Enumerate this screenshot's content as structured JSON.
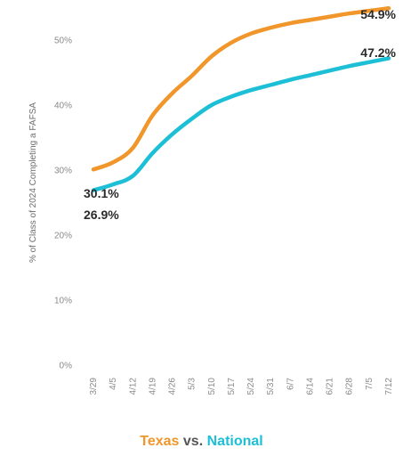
{
  "chart_data": {
    "type": "line",
    "ylabel": "% of Class of 2024 Completing a FAFSA",
    "xlabel": "",
    "categories": [
      "3/29",
      "4/5",
      "4/12",
      "4/19",
      "4/26",
      "5/3",
      "5/10",
      "5/17",
      "5/24",
      "5/31",
      "6/7",
      "6/14",
      "6/21",
      "6/28",
      "7/5",
      "7/12"
    ],
    "ylim": [
      0,
      56
    ],
    "yticks": [
      0,
      10,
      20,
      30,
      40,
      50
    ],
    "ytick_labels": [
      "0%",
      "10%",
      "20%",
      "30%",
      "40%",
      "50%"
    ],
    "grid": false,
    "series": [
      {
        "name": "Texas",
        "color": "#f0962a",
        "values": [
          30.1,
          31.2,
          33.4,
          38.4,
          41.8,
          44.5,
          47.5,
          49.6,
          51.0,
          51.9,
          52.6,
          53.1,
          53.6,
          54.1,
          54.5,
          54.9
        ],
        "start_label": "30.1%",
        "end_label": "54.9%"
      },
      {
        "name": "National",
        "color": "#1cbfd6",
        "values": [
          26.9,
          27.8,
          29.1,
          32.6,
          35.5,
          37.9,
          40.0,
          41.3,
          42.3,
          43.1,
          43.9,
          44.6,
          45.3,
          46.0,
          46.6,
          47.2
        ],
        "start_label": "26.9%",
        "end_label": "47.2%"
      }
    ]
  },
  "legend": {
    "texas": "Texas",
    "vs": "vs.",
    "national": "National"
  }
}
